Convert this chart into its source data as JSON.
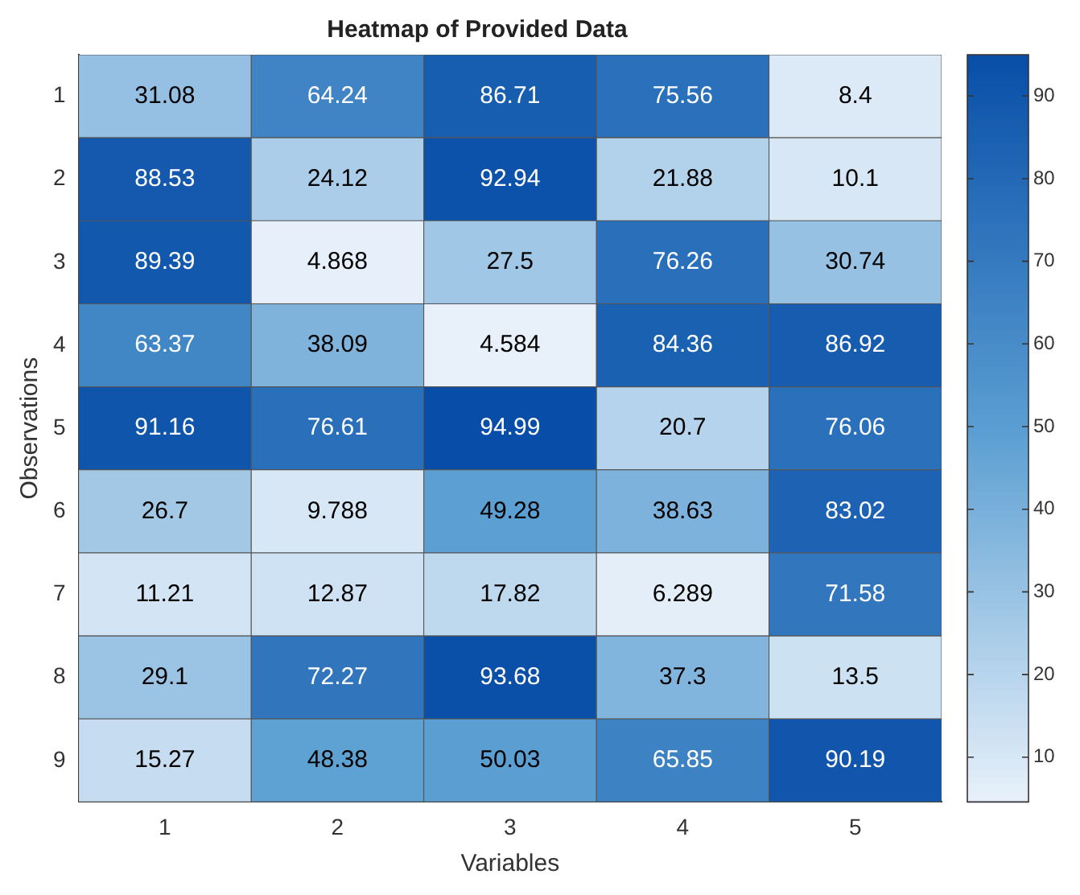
{
  "chart_data": {
    "type": "heatmap",
    "title": "Heatmap of Provided Data",
    "xlabel": "Variables",
    "ylabel": "Observations",
    "categories": [
      "1",
      "2",
      "3",
      "4",
      "5"
    ],
    "y_categories": [
      "1",
      "2",
      "3",
      "4",
      "5",
      "6",
      "7",
      "8",
      "9"
    ],
    "cells": [
      [
        31.08,
        64.24,
        86.71,
        75.56,
        8.4
      ],
      [
        88.53,
        24.12,
        92.94,
        21.88,
        10.1
      ],
      [
        89.39,
        4.868,
        27.5,
        76.26,
        30.74
      ],
      [
        63.37,
        38.09,
        4.584,
        84.36,
        86.92
      ],
      [
        91.16,
        76.61,
        94.99,
        20.7,
        76.06
      ],
      [
        26.7,
        9.788,
        49.28,
        38.63,
        83.02
      ],
      [
        11.21,
        12.87,
        17.82,
        6.289,
        71.58
      ],
      [
        29.1,
        72.27,
        93.68,
        37.3,
        13.5
      ],
      [
        15.27,
        48.38,
        50.03,
        65.85,
        90.19
      ]
    ],
    "data_labels": true,
    "clim": [
      4.584,
      94.99
    ],
    "cticks": [
      10,
      20,
      30,
      40,
      50,
      60,
      70,
      80,
      90
    ]
  }
}
